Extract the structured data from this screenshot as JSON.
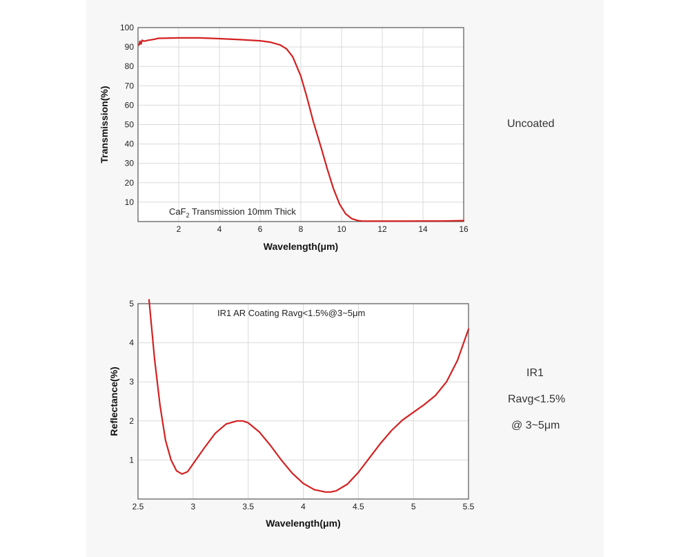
{
  "side_notes": {
    "top": "Uncoated",
    "bottom": [
      "IR1",
      "Ravg<1.5%",
      "@ 3~5μm"
    ]
  },
  "chart_data": [
    {
      "type": "line",
      "title": "",
      "annotation": {
        "main": "CaF",
        "sub": "2",
        "rest": " Transmission 10mm Thick"
      },
      "xlabel": "Wavelength(μm)",
      "ylabel": "Transmission(%)",
      "xlim": [
        0,
        16
      ],
      "ylim": [
        0,
        100
      ],
      "x_ticks": [
        2,
        4,
        6,
        8,
        10,
        12,
        14,
        16
      ],
      "y_ticks": [
        10,
        20,
        30,
        40,
        50,
        60,
        70,
        80,
        90,
        100
      ],
      "grid": true,
      "line_color": "#d42020",
      "series": [
        {
          "x": [
            0.05,
            0.1,
            0.15,
            0.2,
            0.3,
            0.5,
            0.8,
            1,
            2,
            3,
            4,
            5,
            6,
            6.5,
            7,
            7.3,
            7.6,
            8,
            8.3,
            8.6,
            9,
            9.3,
            9.6,
            9.9,
            10.2,
            10.5,
            10.8,
            11,
            11.5,
            12,
            13,
            14,
            15,
            16
          ],
          "y": [
            91,
            93,
            91.5,
            93.5,
            93,
            93.5,
            94,
            94.5,
            94.7,
            94.7,
            94.3,
            93.8,
            93.2,
            92.5,
            91,
            89,
            85,
            75,
            64,
            52,
            38,
            27,
            17,
            9,
            4,
            1.5,
            0.5,
            0.3,
            0.2,
            0.2,
            0.2,
            0.3,
            0.3,
            0.5
          ]
        }
      ]
    },
    {
      "type": "line",
      "title": "",
      "annotation": {
        "main": "IR1 AR Coating Ravg<1.5%@3~5μm",
        "sub": "",
        "rest": ""
      },
      "xlabel": "Wavelength(μm)",
      "ylabel": "Reflectance(%)",
      "xlim": [
        2.5,
        5.5
      ],
      "ylim": [
        0,
        5
      ],
      "x_ticks": [
        2.5,
        3.0,
        3.5,
        4.0,
        4.5,
        5.0,
        5.5
      ],
      "y_ticks": [
        1,
        2,
        3,
        4,
        5
      ],
      "grid": true,
      "line_color": "#d42020",
      "series": [
        {
          "x": [
            2.6,
            2.65,
            2.7,
            2.75,
            2.8,
            2.85,
            2.9,
            2.95,
            3.0,
            3.1,
            3.2,
            3.3,
            3.4,
            3.45,
            3.5,
            3.6,
            3.7,
            3.8,
            3.9,
            4.0,
            4.1,
            4.2,
            4.25,
            4.3,
            4.4,
            4.5,
            4.6,
            4.7,
            4.8,
            4.9,
            5.0,
            5.1,
            5.2,
            5.3,
            5.4,
            5.5
          ],
          "y": [
            5.1,
            3.6,
            2.4,
            1.5,
            1.0,
            0.72,
            0.64,
            0.7,
            0.9,
            1.3,
            1.68,
            1.92,
            2.0,
            2.0,
            1.95,
            1.72,
            1.38,
            1.0,
            0.66,
            0.4,
            0.24,
            0.18,
            0.18,
            0.21,
            0.38,
            0.68,
            1.05,
            1.42,
            1.75,
            2.02,
            2.22,
            2.42,
            2.65,
            3.0,
            3.55,
            4.35
          ]
        }
      ]
    }
  ]
}
